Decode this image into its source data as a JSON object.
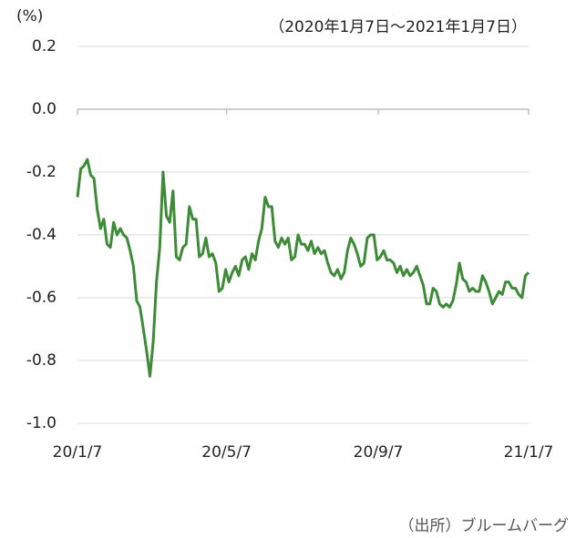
{
  "chart_data": {
    "type": "line",
    "unit_label": "(%)",
    "subtitle": "（2020年1月7日～2021年1月7日）",
    "source": "（出所）ブルームバーグ",
    "color": "#3d8b37",
    "xlim": [
      0,
      366
    ],
    "xticks": [
      {
        "value": 0,
        "label": "20/1/7"
      },
      {
        "value": 121,
        "label": "20/5/7"
      },
      {
        "value": 244,
        "label": "20/9/7"
      },
      {
        "value": 366,
        "label": "21/1/7"
      }
    ],
    "ylim": [
      -1.0,
      0.2
    ],
    "yticks": [
      {
        "value": -1.0,
        "label": "-1.0"
      },
      {
        "value": -0.8,
        "label": "-0.8"
      },
      {
        "value": -0.6,
        "label": "-0.6"
      },
      {
        "value": -0.4,
        "label": "-0.4"
      },
      {
        "value": -0.2,
        "label": "-0.2"
      },
      {
        "value": 0.0,
        "label": "0.0"
      },
      {
        "value": 0.2,
        "label": "0.2"
      }
    ],
    "grid": true,
    "values": [
      -0.28,
      -0.19,
      -0.18,
      -0.16,
      -0.21,
      -0.22,
      -0.32,
      -0.38,
      -0.35,
      -0.43,
      -0.44,
      -0.36,
      -0.4,
      -0.38,
      -0.4,
      -0.41,
      -0.45,
      -0.5,
      -0.61,
      -0.63,
      -0.7,
      -0.77,
      -0.85,
      -0.74,
      -0.55,
      -0.44,
      -0.2,
      -0.34,
      -0.36,
      -0.26,
      -0.47,
      -0.48,
      -0.44,
      -0.43,
      -0.31,
      -0.35,
      -0.35,
      -0.47,
      -0.46,
      -0.41,
      -0.47,
      -0.46,
      -0.49,
      -0.58,
      -0.57,
      -0.51,
      -0.55,
      -0.52,
      -0.5,
      -0.53,
      -0.48,
      -0.47,
      -0.51,
      -0.46,
      -0.48,
      -0.42,
      -0.38,
      -0.28,
      -0.31,
      -0.31,
      -0.42,
      -0.44,
      -0.41,
      -0.43,
      -0.41,
      -0.48,
      -0.47,
      -0.4,
      -0.43,
      -0.43,
      -0.45,
      -0.42,
      -0.46,
      -0.44,
      -0.46,
      -0.45,
      -0.49,
      -0.52,
      -0.53,
      -0.51,
      -0.54,
      -0.52,
      -0.45,
      -0.41,
      -0.43,
      -0.46,
      -0.5,
      -0.49,
      -0.41,
      -0.4,
      -0.4,
      -0.48,
      -0.47,
      -0.45,
      -0.48,
      -0.48,
      -0.49,
      -0.52,
      -0.5,
      -0.53,
      -0.51,
      -0.53,
      -0.52,
      -0.5,
      -0.53,
      -0.56,
      -0.62,
      -0.62,
      -0.57,
      -0.58,
      -0.62,
      -0.63,
      -0.62,
      -0.63,
      -0.61,
      -0.56,
      -0.49,
      -0.54,
      -0.55,
      -0.58,
      -0.57,
      -0.58,
      -0.58,
      -0.53,
      -0.55,
      -0.58,
      -0.62,
      -0.6,
      -0.58,
      -0.59,
      -0.55,
      -0.55,
      -0.57,
      -0.57,
      -0.59,
      -0.6,
      -0.53,
      -0.52
    ]
  }
}
